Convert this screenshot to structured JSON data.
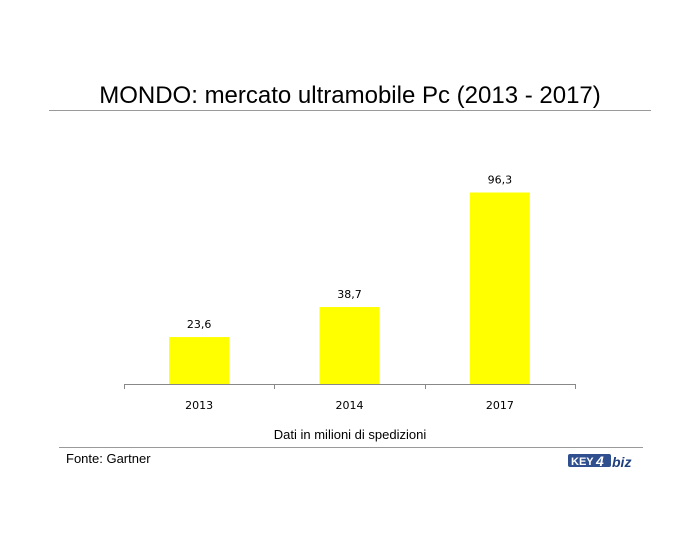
{
  "header": {
    "title": "MONDO: mercato ultramobile Pc (2013 - 2017)"
  },
  "footer": {
    "caption": "Dati in milioni di spedizioni",
    "source": "Fonte: Gartner",
    "logo_text": "KEY4biz"
  },
  "colors": {
    "bar": "#ffff00",
    "axis": "#888888",
    "rule": "#9a9a9a"
  },
  "chart_data": {
    "type": "bar",
    "title": "MONDO: mercato ultramobile Pc (2013 - 2017)",
    "categories": [
      "2013",
      "2014",
      "2017"
    ],
    "values": [
      23.6,
      38.7,
      96.3
    ],
    "value_labels": [
      "23,6",
      "38,7",
      "96,3"
    ],
    "xlabel": "Dati in milioni di spedizioni",
    "ylabel": "",
    "ylim": [
      0,
      100
    ],
    "grid": false,
    "legend": "none"
  }
}
